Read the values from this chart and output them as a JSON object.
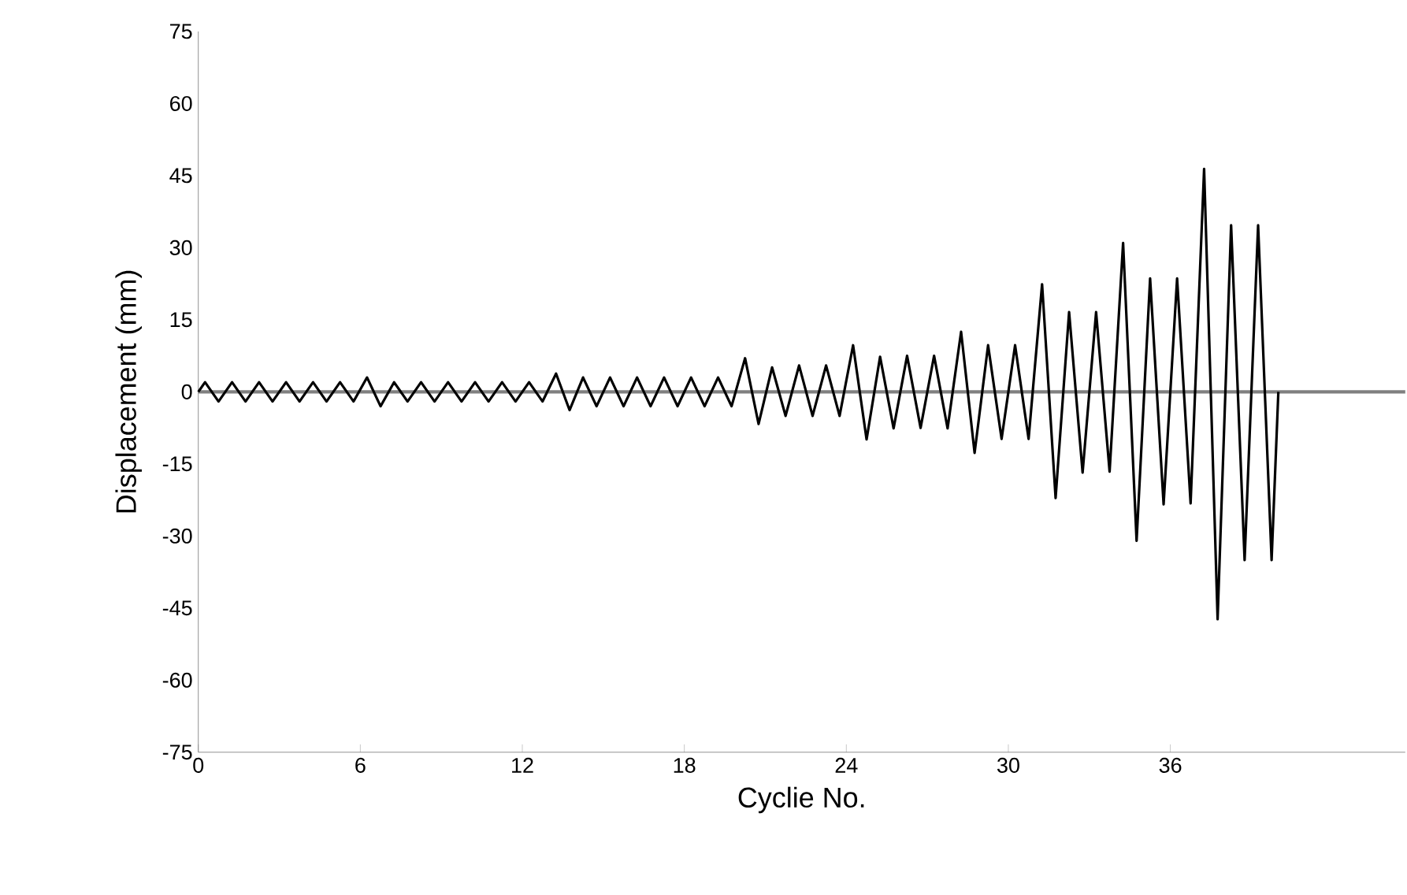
{
  "chart_data": {
    "type": "line",
    "xlabel": "Cyclie No.",
    "ylabel": "Displacement (mm)",
    "x": [
      0,
      0.25,
      0.75,
      1.25,
      1.75,
      2.25,
      2.75,
      3.25,
      3.75,
      4.25,
      4.75,
      5.25,
      5.75,
      6.25,
      6.75,
      7.25,
      7.75,
      8.25,
      8.75,
      9.25,
      9.75,
      10.25,
      10.75,
      11.25,
      11.75,
      12.25,
      12.75,
      13.25,
      13.75,
      14.25,
      14.75,
      15.25,
      15.75,
      16.25,
      16.75,
      17.25,
      17.75,
      18.25,
      18.75,
      19.25,
      19.75,
      20.25,
      20.75,
      21.25,
      21.75,
      22.25,
      22.75,
      23.25,
      23.75,
      24.25,
      24.75,
      25.25,
      25.75,
      26.25,
      26.75,
      27.25,
      27.75,
      28.25,
      28.75,
      29.25,
      29.75,
      30.25,
      30.75,
      31.25,
      31.75,
      32.25,
      32.75,
      33.25,
      33.75,
      34.25,
      34.75,
      35.25,
      35.75,
      36.25,
      36.75,
      37.25,
      37.75,
      38.25,
      38.75,
      39.25,
      39.75,
      40
    ],
    "series": [
      {
        "color": "#000000",
        "values": [
          0,
          2,
          -2,
          2,
          -2,
          2,
          -2,
          2,
          -2,
          2,
          -2,
          2,
          -2,
          3,
          -3,
          2,
          -2,
          2,
          -2,
          2,
          -2,
          2,
          -2,
          2,
          -2,
          2,
          -2,
          3.8,
          -3.8,
          3,
          -3,
          3,
          -3,
          3,
          -3,
          3,
          -3,
          3,
          -3,
          3,
          -3,
          7,
          -6.7,
          5.1,
          -5,
          5.5,
          -5,
          5.5,
          -5,
          9.7,
          -9.9,
          7.3,
          -7.6,
          7.5,
          -7.5,
          7.5,
          -7.6,
          12.5,
          -12.7,
          9.7,
          -9.8,
          9.7,
          -9.8,
          22.4,
          -22.1,
          16.6,
          -16.8,
          16.6,
          -16.6,
          31,
          -31,
          23.6,
          -23.4,
          23.6,
          -23.2,
          46.4,
          -47.3,
          34.7,
          -35,
          34.7,
          -35,
          0
        ]
      }
    ],
    "xlim": [
      0,
      44.7
    ],
    "xticks": [
      0,
      6,
      12,
      18,
      24,
      30,
      36
    ],
    "ylim": [
      -75,
      75
    ],
    "yticks": [
      -75,
      -60,
      -45,
      -30,
      -15,
      0,
      15,
      30,
      45,
      60,
      75
    ],
    "ref_lines": [
      {
        "axis": "y",
        "value": 0,
        "color": "#808080"
      }
    ],
    "grid": false,
    "marker": "none",
    "line_style": "solid"
  }
}
